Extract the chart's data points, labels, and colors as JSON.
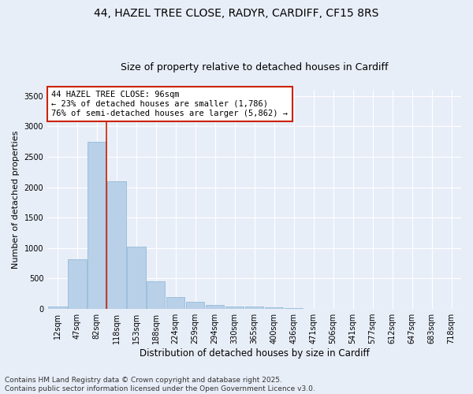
{
  "title_line1": "44, HAZEL TREE CLOSE, RADYR, CARDIFF, CF15 8RS",
  "title_line2": "Size of property relative to detached houses in Cardiff",
  "xlabel": "Distribution of detached houses by size in Cardiff",
  "ylabel": "Number of detached properties",
  "categories": [
    "12sqm",
    "47sqm",
    "82sqm",
    "118sqm",
    "153sqm",
    "188sqm",
    "224sqm",
    "259sqm",
    "294sqm",
    "330sqm",
    "365sqm",
    "400sqm",
    "436sqm",
    "471sqm",
    "506sqm",
    "541sqm",
    "577sqm",
    "612sqm",
    "647sqm",
    "683sqm",
    "718sqm"
  ],
  "bar_heights": [
    40,
    820,
    2750,
    2100,
    1020,
    450,
    190,
    120,
    65,
    45,
    35,
    25,
    15,
    0,
    0,
    0,
    0,
    0,
    0,
    0,
    0
  ],
  "bar_color": "#b8d0e8",
  "bar_edge_color": "#8ab4d4",
  "property_line_color": "#cc2200",
  "annotation_text": "44 HAZEL TREE CLOSE: 96sqm\n← 23% of detached houses are smaller (1,786)\n76% of semi-detached houses are larger (5,862) →",
  "annotation_box_color": "#ffffff",
  "annotation_box_edge": "#cc2200",
  "ylim": [
    0,
    3600
  ],
  "yticks": [
    0,
    500,
    1000,
    1500,
    2000,
    2500,
    3000,
    3500
  ],
  "background_color": "#e8eef8",
  "grid_color": "#ffffff",
  "footer": "Contains HM Land Registry data © Crown copyright and database right 2025.\nContains public sector information licensed under the Open Government Licence v3.0.",
  "title_fontsize": 10,
  "subtitle_fontsize": 9,
  "xlabel_fontsize": 8.5,
  "ylabel_fontsize": 8,
  "tick_fontsize": 7,
  "annotation_fontsize": 7.5,
  "footer_fontsize": 6.5
}
